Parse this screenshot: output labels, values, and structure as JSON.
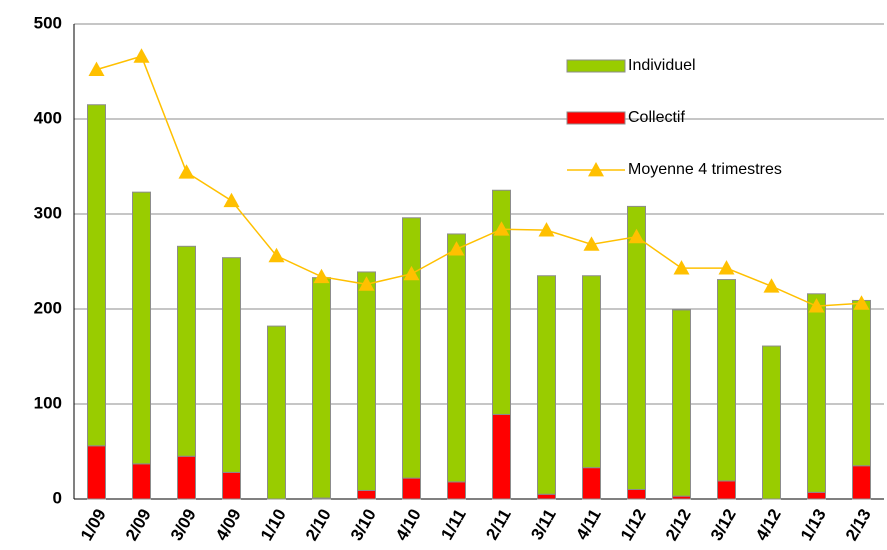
{
  "chart_data": {
    "type": "bar",
    "categories": [
      "1/09",
      "2/09",
      "3/09",
      "4/09",
      "1/10",
      "2/10",
      "3/10",
      "4/10",
      "1/11",
      "2/11",
      "3/11",
      "4/11",
      "1/12",
      "2/12",
      "3/12",
      "4/12",
      "1/13",
      "2/13"
    ],
    "series": [
      {
        "name": "Individuel",
        "type": "bar",
        "color": "#99cc00",
        "values": [
          359,
          286,
          221,
          226,
          182,
          232,
          230,
          274,
          261,
          236,
          230,
          202,
          298,
          196,
          212,
          161,
          209,
          174
        ]
      },
      {
        "name": "Collectif",
        "type": "bar",
        "color": "#ff0000",
        "values": [
          56,
          37,
          45,
          28,
          0,
          1,
          9,
          22,
          18,
          89,
          5,
          33,
          10,
          3,
          19,
          0,
          7,
          35
        ]
      },
      {
        "name": "Moyenne 4 trimestres",
        "type": "line",
        "color": "#ffc000",
        "values": [
          452,
          466,
          344,
          314,
          256,
          234,
          226,
          237,
          263,
          284,
          283,
          268,
          276,
          243,
          243,
          224,
          203,
          206
        ]
      }
    ],
    "ylim": [
      0,
      500
    ],
    "yticks": [
      0,
      100,
      200,
      300,
      400,
      500
    ],
    "grid": true,
    "stacked": true
  }
}
